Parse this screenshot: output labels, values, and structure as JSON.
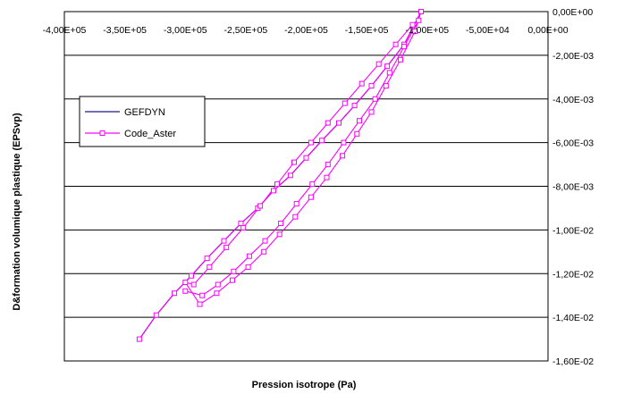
{
  "chart_data": {
    "type": "line",
    "title": "",
    "xlabel": "Pression isotrope (Pa)",
    "ylabel": "D&formation volumique plastique (EPSvp)",
    "xlim": [
      -400000,
      0
    ],
    "ylim": [
      -0.016,
      0
    ],
    "x_ticks": [
      -400000,
      -350000,
      -300000,
      -250000,
      -200000,
      -150000,
      -100000,
      -50000,
      0
    ],
    "x_tick_labels": [
      "-4,00E+05",
      "-3,50E+05",
      "-3,00E+05",
      "-2,50E+05",
      "-2,00E+05",
      "-1,50E+05",
      "-1,00E+05",
      "-5,00E+04",
      "0,00E+00"
    ],
    "y_ticks": [
      0,
      -0.002,
      -0.004,
      -0.006,
      -0.008,
      -0.01,
      -0.012,
      -0.014,
      -0.016
    ],
    "y_tick_labels": [
      "0,00E+00",
      "-2,00E-03",
      "-4,00E-03",
      "-6,00E-03",
      "-8,00E-03",
      "-1,00E-02",
      "-1,20E-02",
      "-1,40E-02",
      "-1,60E-02"
    ],
    "x_axis_position": "top",
    "y_axis_position": "right",
    "grid": "horizontal",
    "legend_position": "left",
    "colors": {
      "GEFDYN": "#1a1a8c",
      "Code_Aster": "#ff00ff",
      "grid": "#000000",
      "plot_background": "#ffffff"
    },
    "series": [
      {
        "name": "GEFDYN",
        "x": [
          -338000,
          -324000,
          -309000,
          -295000,
          -282000,
          -268000,
          -254000,
          -240000,
          -227000,
          -213000,
          -200000,
          -187000,
          -173000,
          -160000,
          -146000,
          -133000,
          -119000,
          -105000
        ],
        "y": [
          -0.015,
          -0.0139,
          -0.0129,
          -0.0121,
          -0.0113,
          -0.0105,
          -0.0097,
          -0.009,
          -0.0082,
          -0.0075,
          -0.0067,
          -0.0059,
          -0.0051,
          -0.0043,
          -0.0034,
          -0.0025,
          -0.0015,
          0
        ]
      },
      {
        "name": "Code_Aster",
        "x": [
          -338000,
          -324000,
          -309000,
          -295000,
          -282000,
          -268000,
          -254000,
          -240000,
          -227000,
          -213000,
          -200000,
          -187000,
          -173000,
          -160000,
          -146000,
          -133000,
          -119000,
          -105000,
          -110000,
          -122000,
          -134000,
          -146000,
          -158000,
          -170000,
          -183000,
          -196000,
          -209000,
          -222000,
          -235000,
          -248000,
          -261000,
          -274000,
          -288000,
          -300000,
          -293000,
          -280000,
          -266000,
          -252000,
          -238000,
          -224000,
          -210000,
          -196000,
          -182000,
          -168000,
          -154000,
          -140000,
          -126000,
          -112000,
          -107000,
          -119000,
          -131000,
          -143000,
          -156000,
          -169000,
          -182000,
          -195000,
          -208000,
          -221000,
          -234000,
          -247000,
          -260000,
          -273000,
          -286000,
          -300000
        ],
        "y": [
          -0.015,
          -0.0139,
          -0.0129,
          -0.0121,
          -0.0113,
          -0.0105,
          -0.0097,
          -0.009,
          -0.0082,
          -0.0075,
          -0.0067,
          -0.0059,
          -0.0051,
          -0.0043,
          -0.0034,
          -0.0025,
          -0.0015,
          0,
          -0.0009,
          -0.0022,
          -0.0034,
          -0.0046,
          -0.0056,
          -0.0066,
          -0.0076,
          -0.0085,
          -0.0094,
          -0.0102,
          -0.011,
          -0.0117,
          -0.0123,
          -0.0129,
          -0.0134,
          -0.0124,
          -0.0125,
          -0.0117,
          -0.0108,
          -0.0099,
          -0.0089,
          -0.0079,
          -0.0069,
          -0.006,
          -0.0051,
          -0.0042,
          -0.0033,
          -0.0024,
          -0.0015,
          -0.0006,
          -0.0004,
          -0.0016,
          -0.0028,
          -0.004,
          -0.005,
          -0.006,
          -0.007,
          -0.0079,
          -0.0088,
          -0.0097,
          -0.0105,
          -0.0112,
          -0.0119,
          -0.0125,
          -0.013,
          -0.0128
        ]
      }
    ]
  }
}
